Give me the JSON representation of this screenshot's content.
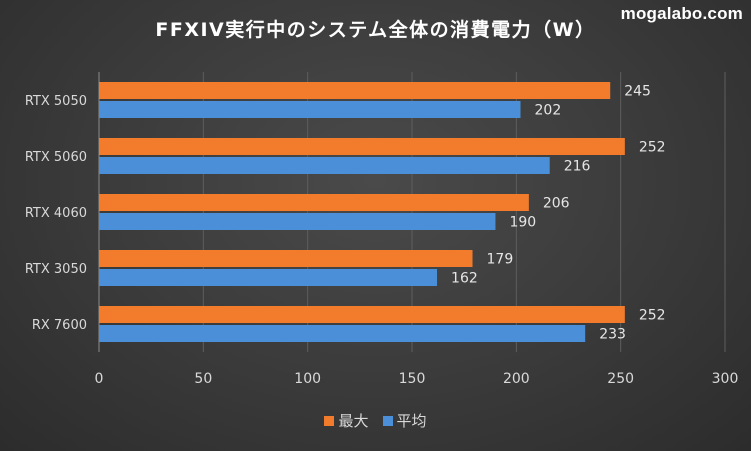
{
  "watermark": "mogalabo.com",
  "chart_data": {
    "type": "bar",
    "orientation": "horizontal",
    "title": "FFXIV実行中のシステム全体の消費電力（W）",
    "categories": [
      "RTX 5050",
      "RTX 5060",
      "RTX 4060",
      "RTX 3050",
      "RX 7600"
    ],
    "series": [
      {
        "name": "最大",
        "color": "#f27c2c",
        "values": [
          245,
          252,
          206,
          179,
          252
        ]
      },
      {
        "name": "平均",
        "color": "#4a8fd8",
        "values": [
          202,
          216,
          190,
          162,
          233
        ]
      }
    ],
    "xlim": [
      0,
      300
    ],
    "xticks": [
      0,
      50,
      100,
      150,
      200,
      250,
      300
    ],
    "xlabel": "",
    "ylabel": "",
    "grid": true,
    "legend_position": "bottom"
  }
}
